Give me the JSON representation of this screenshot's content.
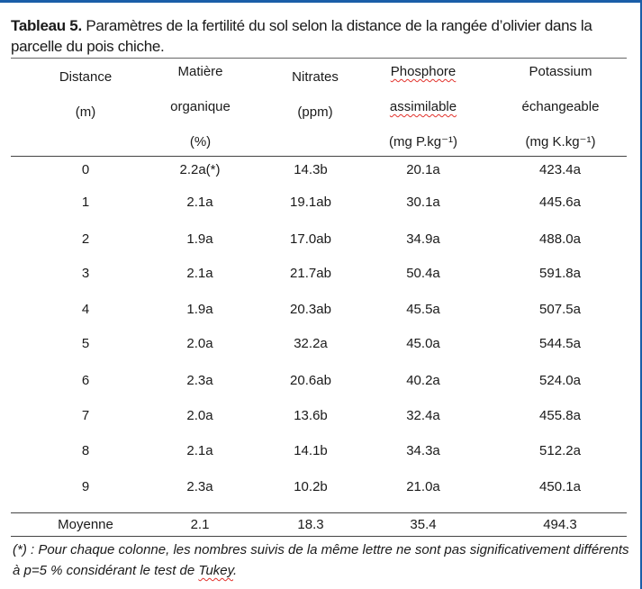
{
  "title": {
    "bold_part": "Tableau 5.",
    "rest": " Paramètres de la fertilité du sol selon la distance de la rangée d’olivier dans la parcelle du pois chiche."
  },
  "columns": [
    {
      "lines": [
        "Distance",
        "(m)"
      ]
    },
    {
      "lines": [
        "Matière",
        "organique",
        "(%)"
      ]
    },
    {
      "lines": [
        "Nitrates",
        "(ppm)"
      ]
    },
    {
      "lines": [
        "Phosphore",
        "assimilable",
        "(mg P.kg⁻¹)"
      ]
    },
    {
      "lines": [
        "Potassium",
        "échangeable",
        "(mg K.kg⁻¹)"
      ]
    }
  ],
  "rows": [
    [
      "0",
      "2.2a(*)",
      "14.3b",
      "20.1a",
      "423.4a"
    ],
    [
      "1",
      "2.1a",
      "19.1ab",
      "30.1a",
      "445.6a"
    ],
    [
      "2",
      "1.9a",
      "17.0ab",
      "34.9a",
      "488.0a"
    ],
    [
      "3",
      "2.1a",
      "21.7ab",
      "50.4a",
      "591.8a"
    ],
    [
      "4",
      "1.9a",
      "20.3ab",
      "45.5a",
      "507.5a"
    ],
    [
      "5",
      "2.0a",
      "32.2a",
      "45.0a",
      "544.5a"
    ],
    [
      "6",
      "2.3a",
      "20.6ab",
      "40.2a",
      "524.0a"
    ],
    [
      "7",
      "2.0a",
      "13.6b",
      "32.4a",
      "455.8a"
    ],
    [
      "8",
      "2.1a",
      "14.1b",
      "34.3a",
      "512.2a"
    ],
    [
      "9",
      "2.3a",
      "10.2b",
      "21.0a",
      "450.1a"
    ]
  ],
  "footer_row": [
    "Moyenne",
    "2.1",
    "18.3",
    "35.4",
    "494.3"
  ],
  "note": {
    "part1": "(*) : Pour chaque colonne, les nombres suivis de la même lettre ne sont pas significativement différents à p=5 % considérant le test de ",
    "tukey": "Tukey",
    "part2": "."
  }
}
